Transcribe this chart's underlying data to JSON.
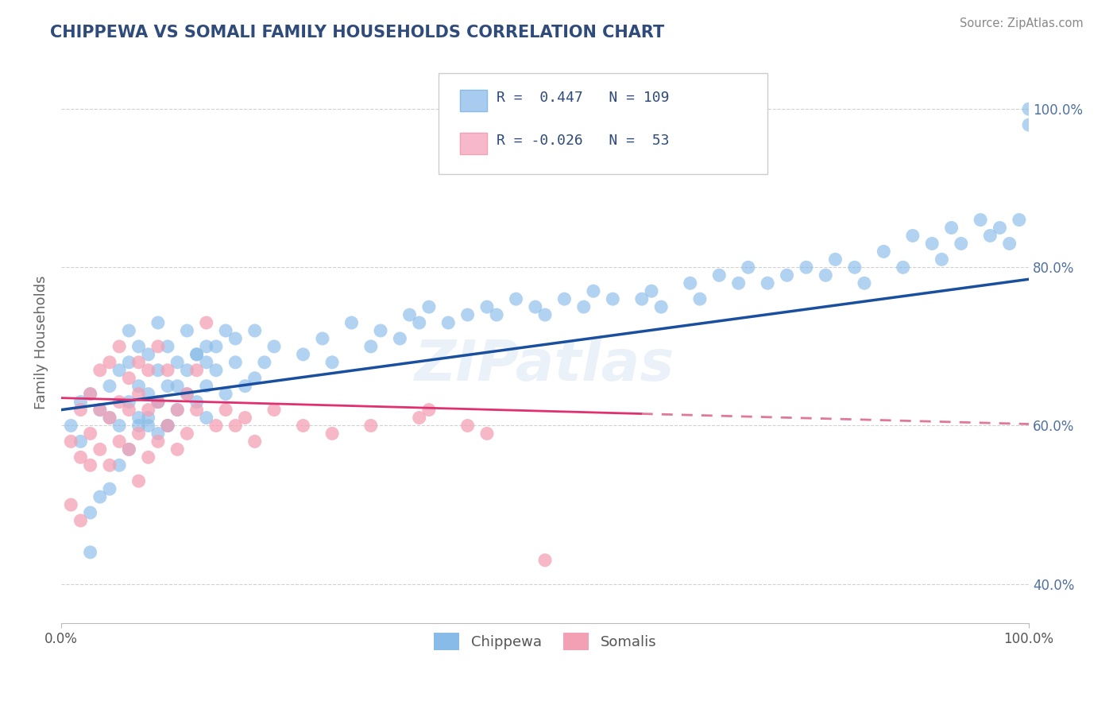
{
  "title": "CHIPPEWA VS SOMALI FAMILY HOUSEHOLDS CORRELATION CHART",
  "source": "Source: ZipAtlas.com",
  "ylabel": "Family Households",
  "title_color": "#2E4B7B",
  "title_fontsize": 15,
  "background_color": "#FFFFFF",
  "grid_color": "#CCCCCC",
  "chippewa_color": "#88BBE8",
  "somali_color": "#F4A0B4",
  "chippewa_line_color": "#1A4FA0",
  "somali_line_color": "#E03070",
  "somali_line_dashed_color": "#E07898",
  "R_chippewa": 0.447,
  "N_chippewa": 109,
  "R_somali": -0.026,
  "N_somali": 53,
  "legend_box_color_chippewa": "#A8CCF0",
  "legend_box_color_somali": "#F8B8CC",
  "watermark": "ZIPatlas",
  "chippewa_line_x0": 0,
  "chippewa_line_y0": 62.0,
  "chippewa_line_x1": 100,
  "chippewa_line_y1": 78.5,
  "somali_line_x0": 0,
  "somali_line_y0": 63.5,
  "somali_line_x1": 60,
  "somali_line_y1": 61.5,
  "somali_dash_x0": 60,
  "somali_dash_y0": 61.5,
  "somali_dash_x1": 100,
  "somali_dash_y1": 60.2,
  "xlim": [
    0,
    100
  ],
  "ylim": [
    35,
    106
  ],
  "yticks": [
    40,
    60,
    80,
    100
  ],
  "ytick_labels": [
    "40.0%",
    "60.0%",
    "80.0%",
    "100.0%"
  ],
  "chippewa_x": [
    1,
    2,
    2,
    3,
    4,
    5,
    5,
    6,
    6,
    7,
    7,
    7,
    8,
    8,
    8,
    9,
    9,
    9,
    10,
    10,
    10,
    10,
    11,
    11,
    11,
    12,
    12,
    13,
    13,
    14,
    14,
    15,
    15,
    15,
    16,
    17,
    18,
    19,
    20,
    20,
    21,
    22,
    25,
    27,
    28,
    30,
    32,
    33,
    35,
    36,
    37,
    38,
    40,
    42,
    44,
    45,
    47,
    49,
    50,
    52,
    54,
    55,
    57,
    60,
    61,
    62,
    65,
    66,
    68,
    70,
    71,
    73,
    75,
    77,
    79,
    80,
    82,
    83,
    85,
    87,
    88,
    90,
    91,
    92,
    93,
    95,
    96,
    97,
    98,
    99,
    100,
    100,
    3,
    3,
    4,
    5,
    6,
    7,
    8,
    9,
    10,
    11,
    12,
    13,
    14,
    15,
    16,
    17,
    18
  ],
  "chippewa_y": [
    60,
    58,
    63,
    64,
    62,
    61,
    65,
    60,
    67,
    63,
    68,
    72,
    61,
    65,
    70,
    60,
    64,
    69,
    59,
    63,
    67,
    73,
    60,
    65,
    70,
    62,
    68,
    64,
    72,
    63,
    69,
    61,
    65,
    70,
    67,
    64,
    68,
    65,
    66,
    72,
    68,
    70,
    69,
    71,
    68,
    73,
    70,
    72,
    71,
    74,
    73,
    75,
    73,
    74,
    75,
    74,
    76,
    75,
    74,
    76,
    75,
    77,
    76,
    76,
    77,
    75,
    78,
    76,
    79,
    78,
    80,
    78,
    79,
    80,
    79,
    81,
    80,
    78,
    82,
    80,
    84,
    83,
    81,
    85,
    83,
    86,
    84,
    85,
    83,
    86,
    100,
    98,
    44,
    49,
    51,
    52,
    55,
    57,
    60,
    61,
    63,
    60,
    65,
    67,
    69,
    68,
    70,
    72,
    71
  ],
  "somali_x": [
    1,
    1,
    2,
    2,
    2,
    3,
    3,
    3,
    4,
    4,
    4,
    5,
    5,
    5,
    6,
    6,
    6,
    7,
    7,
    7,
    8,
    8,
    8,
    8,
    9,
    9,
    9,
    10,
    10,
    10,
    11,
    11,
    12,
    12,
    13,
    13,
    14,
    14,
    15,
    16,
    17,
    18,
    19,
    20,
    22,
    25,
    28,
    32,
    37,
    44,
    50,
    38,
    42
  ],
  "somali_y": [
    58,
    50,
    56,
    62,
    48,
    59,
    64,
    55,
    62,
    57,
    67,
    61,
    55,
    68,
    63,
    58,
    70,
    62,
    57,
    66,
    64,
    59,
    53,
    68,
    62,
    56,
    67,
    63,
    58,
    70,
    60,
    67,
    62,
    57,
    64,
    59,
    62,
    67,
    73,
    60,
    62,
    60,
    61,
    58,
    62,
    60,
    59,
    60,
    61,
    59,
    43,
    62,
    60
  ]
}
